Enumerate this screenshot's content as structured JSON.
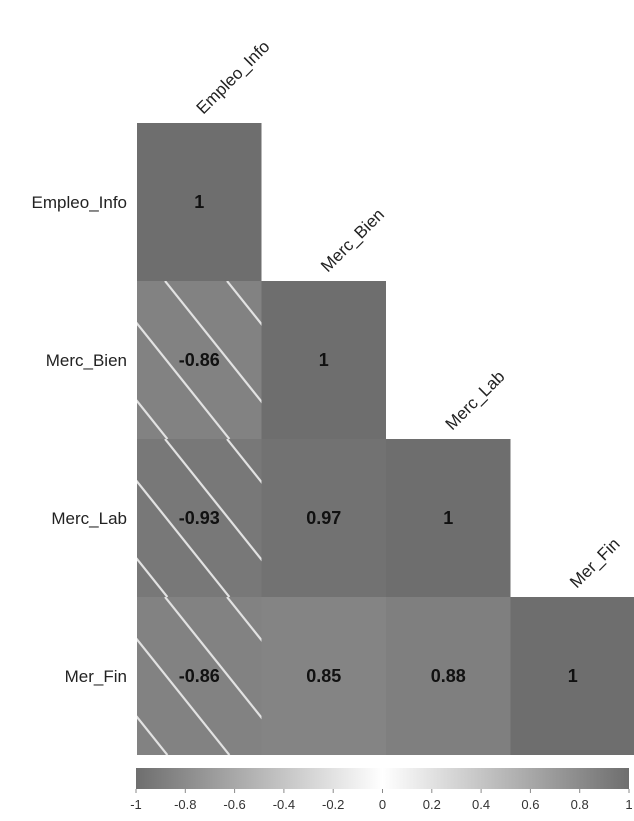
{
  "chart_data": {
    "type": "heatmap",
    "layout": "lower-triangle",
    "variables": [
      "Empleo_Info",
      "Merc_Bien",
      "Merc_Lab",
      "Mer_Fin"
    ],
    "cells": [
      {
        "row": 0,
        "col": 0,
        "value": 1,
        "label": "1"
      },
      {
        "row": 1,
        "col": 0,
        "value": -0.86,
        "label": "-0.86"
      },
      {
        "row": 1,
        "col": 1,
        "value": 1,
        "label": "1"
      },
      {
        "row": 2,
        "col": 0,
        "value": -0.93,
        "label": "-0.93"
      },
      {
        "row": 2,
        "col": 1,
        "value": 0.97,
        "label": "0.97"
      },
      {
        "row": 2,
        "col": 2,
        "value": 1,
        "label": "1"
      },
      {
        "row": 3,
        "col": 0,
        "value": -0.86,
        "label": "-0.86"
      },
      {
        "row": 3,
        "col": 1,
        "value": 0.85,
        "label": "0.85"
      },
      {
        "row": 3,
        "col": 2,
        "value": 0.88,
        "label": "0.88"
      },
      {
        "row": 3,
        "col": 3,
        "value": 1,
        "label": "1"
      }
    ],
    "negative_cells_hatched": true,
    "colorbar": {
      "range": [
        -1,
        1
      ],
      "ticks": [
        -1,
        -0.8,
        -0.6,
        -0.4,
        -0.2,
        0,
        0.2,
        0.4,
        0.6,
        0.8,
        1
      ],
      "tick_labels": [
        "-1",
        "-0.8",
        "-0.6",
        "-0.4",
        "-0.2",
        "0",
        "0.2",
        "0.4",
        "0.6",
        "0.8",
        "1"
      ],
      "color_low": "#6e6e6e",
      "color_mid": "#ffffff",
      "color_high": "#6e6e6e"
    }
  }
}
